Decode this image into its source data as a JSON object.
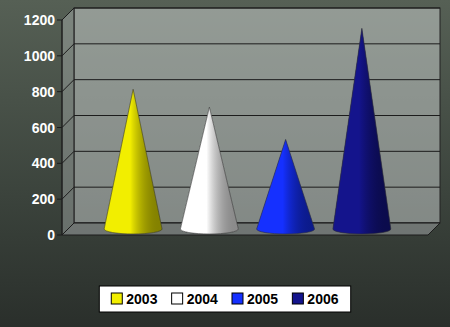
{
  "chart_data": {
    "type": "bar",
    "marker": "cone",
    "series": [
      {
        "name": "2003",
        "color": "#f2ee00",
        "values": [
          780
        ]
      },
      {
        "name": "2004",
        "color": "#ffffff",
        "values": [
          680
        ]
      },
      {
        "name": "2005",
        "color": "#1530ff",
        "values": [
          500
        ]
      },
      {
        "name": "2006",
        "color": "#14148c",
        "values": [
          1120
        ]
      }
    ],
    "ylim": [
      0,
      1200
    ],
    "yticks": [
      0,
      200,
      400,
      600,
      800,
      1000,
      1200
    ],
    "grid": true,
    "legend": "bottom",
    "tick_labels": "y"
  }
}
